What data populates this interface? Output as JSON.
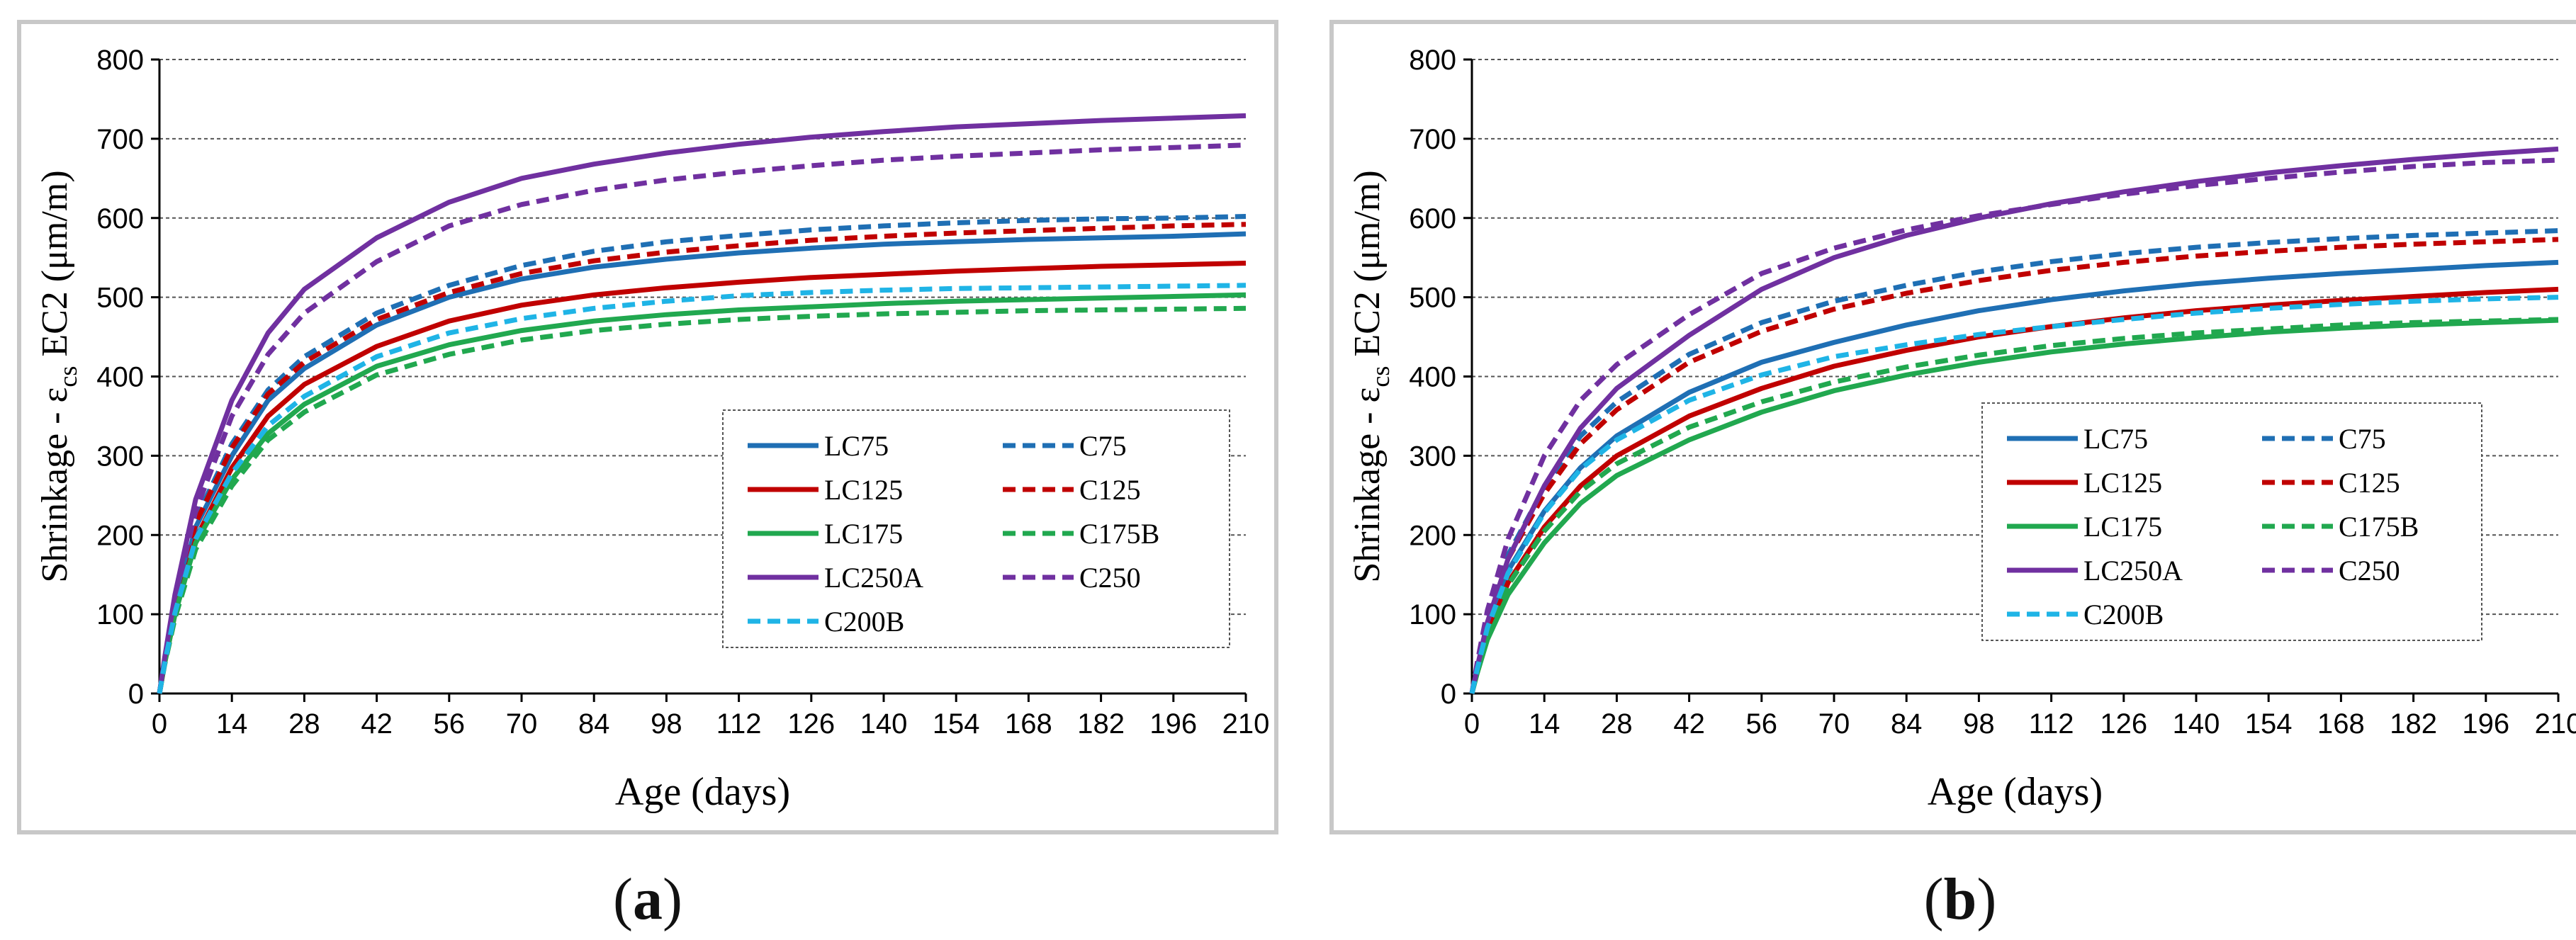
{
  "chart_data": [
    {
      "id": "a",
      "type": "line",
      "panel_label": "a",
      "xlabel": "Age (days)",
      "ylabel_parts": {
        "prefix": "Shrinkage - ε",
        "subscript": "cs",
        "suffix": " EC2 (μm/m)"
      },
      "xlim": [
        0,
        210
      ],
      "ylim": [
        0,
        800
      ],
      "xticks": [
        0,
        14,
        28,
        42,
        56,
        70,
        84,
        98,
        112,
        126,
        140,
        154,
        168,
        182,
        196,
        210
      ],
      "yticks": [
        0,
        100,
        200,
        300,
        400,
        500,
        600,
        700,
        800
      ],
      "grid": true,
      "legend_position": "lower-right",
      "x": [
        0,
        1,
        3,
        7,
        14,
        21,
        28,
        42,
        56,
        70,
        84,
        98,
        112,
        126,
        140,
        154,
        168,
        182,
        196,
        210
      ],
      "series": [
        {
          "name": "LC75",
          "color": "#1f6fb4",
          "style": "solid",
          "values": [
            0,
            40,
            110,
            210,
            300,
            370,
            410,
            465,
            500,
            523,
            538,
            548,
            556,
            562,
            567,
            570,
            573,
            575,
            577,
            580
          ]
        },
        {
          "name": "C75",
          "color": "#1f6fb4",
          "style": "dashed",
          "values": [
            0,
            42,
            115,
            220,
            315,
            383,
            425,
            480,
            515,
            540,
            558,
            570,
            578,
            585,
            590,
            594,
            597,
            599,
            600,
            602
          ]
        },
        {
          "name": "LC125",
          "color": "#c00000",
          "style": "solid",
          "values": [
            0,
            38,
            100,
            195,
            285,
            350,
            390,
            438,
            470,
            490,
            503,
            512,
            519,
            525,
            529,
            533,
            536,
            539,
            541,
            543
          ]
        },
        {
          "name": "C125",
          "color": "#c00000",
          "style": "dashed",
          "values": [
            0,
            42,
            113,
            215,
            310,
            378,
            418,
            472,
            506,
            530,
            546,
            557,
            565,
            572,
            577,
            581,
            584,
            587,
            590,
            592
          ]
        },
        {
          "name": "LC175",
          "color": "#21a84f",
          "style": "solid",
          "values": [
            0,
            38,
            100,
            190,
            270,
            328,
            365,
            413,
            440,
            458,
            470,
            478,
            484,
            488,
            492,
            495,
            497,
            499,
            501,
            503
          ]
        },
        {
          "name": "C175B",
          "color": "#21a84f",
          "style": "dashed",
          "values": [
            0,
            36,
            95,
            182,
            262,
            320,
            355,
            402,
            428,
            446,
            458,
            466,
            472,
            476,
            479,
            481,
            483,
            484,
            485,
            486
          ]
        },
        {
          "name": "LC250A",
          "color": "#7030a0",
          "style": "solid",
          "values": [
            0,
            45,
            125,
            245,
            370,
            455,
            510,
            575,
            620,
            650,
            668,
            682,
            693,
            702,
            709,
            715,
            719,
            723,
            726,
            729
          ]
        },
        {
          "name": "C250",
          "color": "#7030a0",
          "style": "dashed",
          "values": [
            0,
            42,
            118,
            230,
            350,
            428,
            480,
            545,
            590,
            617,
            635,
            648,
            658,
            666,
            673,
            678,
            682,
            686,
            689,
            692
          ]
        },
        {
          "name": "C200B",
          "color": "#1fb4e6",
          "style": "dashed",
          "values": [
            0,
            38,
            102,
            195,
            278,
            338,
            375,
            425,
            455,
            473,
            486,
            495,
            502,
            506,
            509,
            511,
            512,
            513,
            514,
            515
          ]
        }
      ]
    },
    {
      "id": "b",
      "type": "line",
      "panel_label": "b",
      "xlabel": "Age (days)",
      "ylabel_parts": {
        "prefix": "Shrinkage - ε",
        "subscript": "cs",
        "suffix": " EC2 (μm/m)"
      },
      "xlim": [
        0,
        210
      ],
      "ylim": [
        0,
        800
      ],
      "xticks": [
        0,
        14,
        28,
        42,
        56,
        70,
        84,
        98,
        112,
        126,
        140,
        154,
        168,
        182,
        196,
        210
      ],
      "yticks": [
        0,
        100,
        200,
        300,
        400,
        500,
        600,
        700,
        800
      ],
      "grid": true,
      "legend_position": "lower-right",
      "x": [
        0,
        1,
        3,
        7,
        14,
        21,
        28,
        42,
        56,
        70,
        84,
        98,
        112,
        126,
        140,
        154,
        168,
        182,
        196,
        210
      ],
      "series": [
        {
          "name": "LC75",
          "color": "#1f6fb4",
          "style": "solid",
          "values": [
            0,
            30,
            85,
            155,
            230,
            285,
            325,
            380,
            418,
            443,
            465,
            483,
            497,
            508,
            517,
            524,
            530,
            535,
            540,
            544
          ]
        },
        {
          "name": "C75",
          "color": "#1f6fb4",
          "style": "dashed",
          "values": [
            0,
            35,
            95,
            175,
            260,
            325,
            368,
            428,
            468,
            495,
            515,
            532,
            545,
            555,
            563,
            569,
            574,
            578,
            581,
            584
          ]
        },
        {
          "name": "LC125",
          "color": "#c00000",
          "style": "solid",
          "values": [
            0,
            28,
            75,
            140,
            210,
            262,
            300,
            350,
            385,
            413,
            433,
            450,
            463,
            474,
            483,
            490,
            496,
            501,
            506,
            510
          ]
        },
        {
          "name": "C125",
          "color": "#c00000",
          "style": "dashed",
          "values": [
            0,
            34,
            92,
            170,
            252,
            315,
            358,
            418,
            457,
            485,
            505,
            521,
            534,
            544,
            552,
            558,
            563,
            567,
            570,
            573
          ]
        },
        {
          "name": "LC175",
          "color": "#21a84f",
          "style": "solid",
          "values": [
            0,
            25,
            68,
            125,
            190,
            240,
            275,
            320,
            355,
            382,
            402,
            418,
            431,
            441,
            449,
            456,
            461,
            465,
            468,
            471
          ]
        },
        {
          "name": "C175B",
          "color": "#21a84f",
          "style": "dashed",
          "values": [
            0,
            27,
            74,
            137,
            205,
            255,
            290,
            336,
            368,
            393,
            412,
            427,
            439,
            448,
            455,
            460,
            465,
            468,
            470,
            472
          ]
        },
        {
          "name": "LC250A",
          "color": "#7030a0",
          "style": "solid",
          "values": [
            0,
            32,
            90,
            170,
            262,
            335,
            385,
            452,
            510,
            550,
            578,
            600,
            618,
            633,
            646,
            657,
            666,
            674,
            681,
            687
          ]
        },
        {
          "name": "C250",
          "color": "#7030a0",
          "style": "dashed",
          "values": [
            0,
            38,
            105,
            195,
            300,
            370,
            415,
            478,
            530,
            562,
            585,
            603,
            617,
            630,
            641,
            650,
            658,
            665,
            670,
            673
          ]
        },
        {
          "name": "C200B",
          "color": "#1fb4e6",
          "style": "dashed",
          "values": [
            0,
            30,
            83,
            152,
            228,
            283,
            320,
            370,
            402,
            425,
            440,
            453,
            463,
            472,
            480,
            486,
            491,
            495,
            498,
            500
          ]
        }
      ]
    }
  ]
}
